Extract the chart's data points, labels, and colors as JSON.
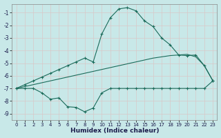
{
  "xlabel": "Humidex (Indice chaleur)",
  "background_color": "#c8e8e8",
  "line_color": "#1a6b5a",
  "xlim": [
    -0.5,
    23.5
  ],
  "ylim": [
    -9.5,
    -0.3
  ],
  "yticks": [
    -9,
    -8,
    -7,
    -6,
    -5,
    -4,
    -3,
    -2,
    -1
  ],
  "xticks": [
    0,
    1,
    2,
    3,
    4,
    5,
    6,
    7,
    8,
    9,
    10,
    11,
    12,
    13,
    14,
    15,
    16,
    17,
    18,
    19,
    20,
    21,
    22,
    23
  ],
  "line1_x": [
    0,
    1,
    2,
    3,
    4,
    5,
    6,
    7,
    8,
    9,
    10,
    11,
    12,
    13,
    14,
    15,
    16,
    17,
    18,
    19,
    20,
    21,
    22,
    23
  ],
  "line1_y": [
    -7.0,
    -6.7,
    -6.4,
    -6.1,
    -5.8,
    -5.5,
    -5.2,
    -4.9,
    -4.6,
    -4.9,
    -2.7,
    -1.4,
    -0.7,
    -0.6,
    -0.85,
    -1.65,
    -2.1,
    -3.0,
    -3.55,
    -4.35,
    -4.4,
    -4.35,
    -5.2,
    -6.4
  ],
  "line2_x": [
    0,
    1,
    2,
    3,
    4,
    5,
    6,
    7,
    8,
    9,
    10,
    11,
    12,
    13,
    14,
    15,
    16,
    17,
    18,
    19,
    20,
    21,
    22,
    23
  ],
  "line2_y": [
    -7.0,
    -6.85,
    -6.7,
    -6.55,
    -6.4,
    -6.25,
    -6.1,
    -5.95,
    -5.8,
    -5.65,
    -5.5,
    -5.35,
    -5.2,
    -5.05,
    -4.9,
    -4.75,
    -4.6,
    -4.5,
    -4.4,
    -4.35,
    -4.3,
    -4.5,
    -5.2,
    -6.4
  ],
  "line3_x": [
    0,
    1,
    2,
    3,
    4,
    5,
    6,
    7,
    8,
    9,
    10,
    11,
    12,
    13,
    14,
    15,
    16,
    17,
    18,
    19,
    20,
    21,
    22,
    23
  ],
  "line3_y": [
    -7.0,
    -7.0,
    -7.0,
    -7.35,
    -7.85,
    -7.75,
    -8.45,
    -8.5,
    -8.85,
    -8.55,
    -7.35,
    -7.0,
    -7.0,
    -7.0,
    -7.0,
    -7.0,
    -7.0,
    -7.0,
    -7.0,
    -7.0,
    -7.0,
    -7.0,
    -7.0,
    -6.4
  ]
}
